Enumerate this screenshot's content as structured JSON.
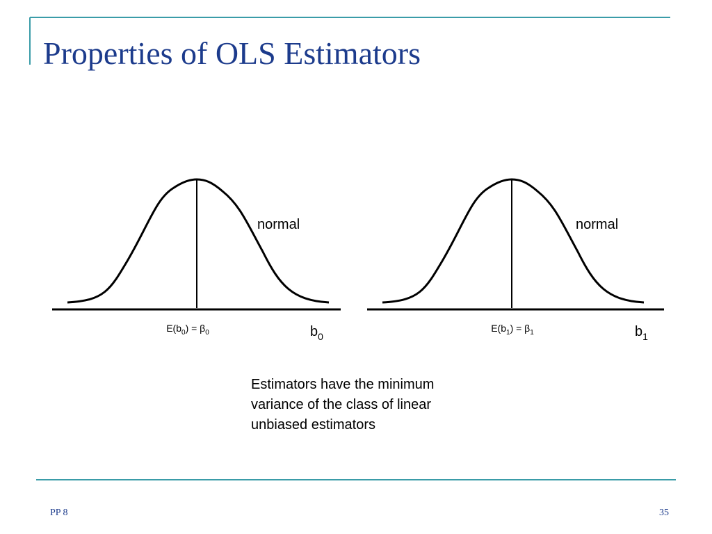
{
  "header": {
    "title": "Properties of OLS Estimators"
  },
  "diagrams": [
    {
      "curve_label": "normal",
      "mean_label": [
        "E(b",
        "0",
        ") = β",
        "0"
      ],
      "axis_label": [
        "b",
        "0"
      ]
    },
    {
      "curve_label": "normal",
      "mean_label": [
        "E(b",
        "1",
        ") = β",
        "1"
      ],
      "axis_label": [
        "b",
        "1"
      ]
    }
  ],
  "body": {
    "lines": [
      "Estimators have the minimum",
      "variance of the class of linear",
      "unbiased estimators"
    ]
  },
  "footer": {
    "left": "PP 8",
    "page_number": "35"
  }
}
